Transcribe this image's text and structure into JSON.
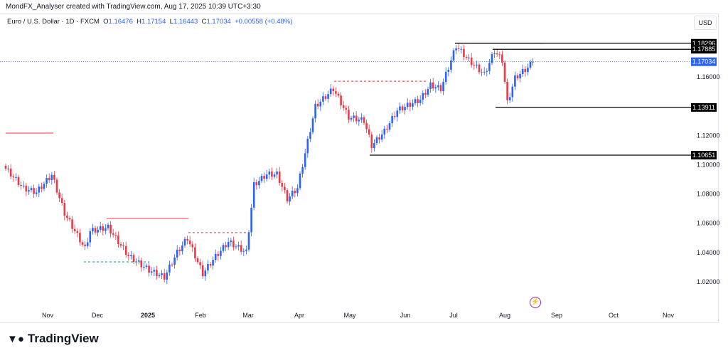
{
  "header": {
    "credit": "MondFX_Analyser created with TradingView.com, Aug 17, 2025 10:39 UTC+3:30"
  },
  "legend": {
    "symbol": "Euro / U.S. Dollar · 1D · FXCM",
    "o_label": "O",
    "o": "1.16476",
    "h_label": "H",
    "h": "1.17154",
    "l_label": "L",
    "l": "1.16443",
    "c_label": "C",
    "c": "1.17034",
    "change": "+0.00558 (+0.48%)"
  },
  "currency": "USD",
  "footer": {
    "logo": "TradingView"
  },
  "colors": {
    "up": "#2962ff",
    "down": "#f23645",
    "level": "#000000",
    "current": "#2962ff"
  },
  "chart_data": {
    "type": "candlestick",
    "title": "Euro / U.S. Dollar · 1D · FXCM",
    "ylim": [
      1.0,
      1.195
    ],
    "y_ticks": [
      "1.16000",
      "1.12000",
      "1.10000",
      "1.08000",
      "1.06000",
      "1.04000",
      "1.02000"
    ],
    "x_ticks": [
      "Nov",
      "Dec",
      "2025",
      "Feb",
      "Mar",
      "Apr",
      "May",
      "Jun",
      "Jul",
      "Aug",
      "Sep",
      "Oct",
      "Nov"
    ],
    "close_path": [
      [
        0,
        1.0973
      ],
      [
        7,
        1.0837
      ],
      [
        12,
        1.081
      ],
      [
        18,
        1.093
      ],
      [
        23,
        1.0667
      ],
      [
        31,
        1.0424
      ],
      [
        33,
        1.0545
      ],
      [
        40,
        1.057
      ],
      [
        48,
        1.0375
      ],
      [
        56,
        1.0278
      ],
      [
        62,
        1.023
      ],
      [
        67,
        1.04
      ],
      [
        71,
        1.0497
      ],
      [
        77,
        1.0253
      ],
      [
        81,
        1.035
      ],
      [
        87,
        1.0472
      ],
      [
        94,
        1.04
      ],
      [
        97,
        1.086
      ],
      [
        102,
        1.0933
      ],
      [
        106,
        1.0933
      ],
      [
        110,
        1.0764
      ],
      [
        114,
        1.084
      ],
      [
        121,
        1.1396
      ],
      [
        128,
        1.1517
      ],
      [
        134,
        1.1323
      ],
      [
        140,
        1.13
      ],
      [
        143,
        1.1128
      ],
      [
        148,
        1.1226
      ],
      [
        153,
        1.137
      ],
      [
        162,
        1.1444
      ],
      [
        166,
        1.1542
      ],
      [
        170,
        1.1517
      ],
      [
        176,
        1.181
      ],
      [
        181,
        1.1712
      ],
      [
        187,
        1.1615
      ],
      [
        191,
        1.1775
      ],
      [
        194,
        1.1712
      ],
      [
        196,
        1.142
      ],
      [
        199,
        1.159
      ],
      [
        204,
        1.1663
      ],
      [
        206,
        1.17034
      ]
    ],
    "levels": [
      {
        "price": 1.18296,
        "label": "1.18296"
      },
      {
        "price": 1.17885,
        "label": "1.17885"
      },
      {
        "price": 1.13911,
        "label": "1.13911"
      },
      {
        "price": 1.10651,
        "label": "1.10651"
      }
    ],
    "current_price": {
      "price": 1.17034,
      "label": "1.17034"
    },
    "zones": [
      {
        "price": 1.1216,
        "style": "solid-red"
      },
      {
        "price": 1.0633,
        "style": "solid-red"
      },
      {
        "price": 1.0536,
        "style": "dashed-red"
      },
      {
        "price": 1.0336,
        "style": "dashed-teal"
      },
      {
        "price": 1.157,
        "style": "dashed-red"
      },
      {
        "price": 1.18296,
        "style": "solid-red"
      }
    ]
  }
}
